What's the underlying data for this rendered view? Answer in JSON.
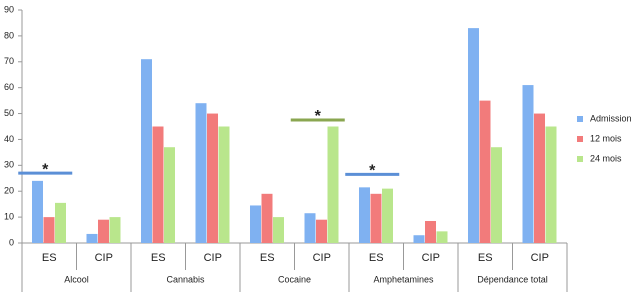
{
  "chart_data": {
    "type": "bar",
    "groups": [
      "Alcool",
      "Cannabis",
      "Cocaine",
      "Amphetamines",
      "Dépendance total"
    ],
    "categories": [
      "ES",
      "CIP",
      "ES",
      "CIP",
      "ES",
      "CIP",
      "ES",
      "CIP",
      "ES",
      "CIP"
    ],
    "series": [
      {
        "name": "Admission",
        "color": "#7fb1f1",
        "values": [
          24,
          3.5,
          71,
          54,
          14.5,
          11.5,
          21.5,
          3,
          83,
          61
        ]
      },
      {
        "name": "12 mois",
        "color": "#f27b7b",
        "values": [
          10,
          9,
          45,
          50,
          19,
          9,
          19,
          8.5,
          55,
          50
        ]
      },
      {
        "name": "24 mois",
        "color": "#b9e68c",
        "values": [
          15.5,
          10,
          37,
          45,
          10,
          45,
          21,
          4.5,
          37,
          45
        ]
      }
    ],
    "ylim": [
      0,
      90
    ],
    "yticks": [
      0,
      10,
      20,
      30,
      40,
      50,
      60,
      70,
      80,
      90
    ],
    "grid": false,
    "legend": "right",
    "annotations": [
      {
        "text": "*",
        "category": 0,
        "y": 27,
        "color": "#5b8fd6"
      },
      {
        "text": "*",
        "category": 5,
        "y": 47.5,
        "color": "#8aa650"
      },
      {
        "text": "*",
        "category": 6,
        "y": 26.5,
        "color": "#5b8fd6"
      }
    ]
  }
}
